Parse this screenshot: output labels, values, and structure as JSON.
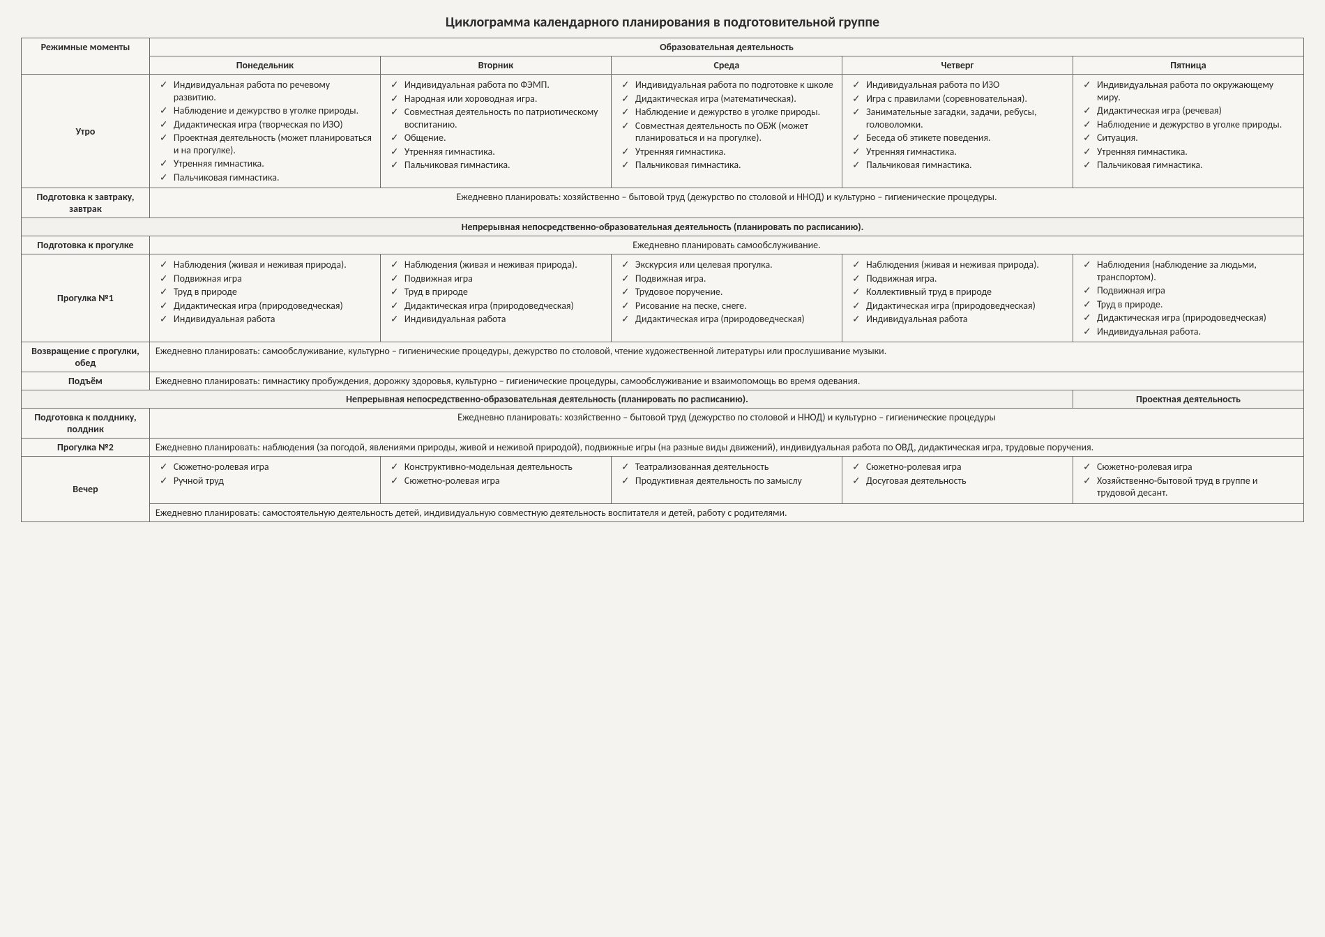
{
  "title": "Циклограмма календарного планирования в подготовительной группе",
  "header": {
    "col0": "Режимные моменты",
    "spanHeader": "Образовательная деятельность",
    "days": [
      "Понедельник",
      "Вторник",
      "Среда",
      "Четверг",
      "Пятница"
    ]
  },
  "rows": {
    "morning": {
      "label": "Утро",
      "cells": [
        [
          "Индивидуальная работа по речевому развитию.",
          "Наблюдение и дежурство в уголке природы.",
          "Дидактическая игра (творческая по ИЗО)",
          "Проектная деятельность (может планироваться и на прогулке).",
          "Утренняя гимнастика.",
          "Пальчиковая гимнастика."
        ],
        [
          "Индивидуальная работа по ФЭМП.",
          "Народная или хороводная игра.",
          "Совместная деятельность по патриотическому воспитанию.",
          "Общение.",
          "Утренняя гимнастика.",
          "Пальчиковая гимнастика."
        ],
        [
          "Индивидуальная работа по подготовке к школе",
          "Дидактическая игра (математическая).",
          "Наблюдение и дежурство в уголке природы.",
          "Совместная деятельность по ОБЖ (может планироваться и на прогулке).",
          "Утренняя гимнастика.",
          "Пальчиковая гимнастика."
        ],
        [
          "Индивидуальная работа по ИЗО",
          "Игра с правилами (соревновательная).",
          "Занимательные загадки, задачи, ребусы, головоломки.",
          "Беседа об этикете поведения.",
          "Утренняя гимнастика.",
          "Пальчиковая гимнастика."
        ],
        [
          "Индивидуальная работа по окружающему миру.",
          "Дидактическая игра (речевая)",
          "Наблюдение и дежурство в уголке природы.",
          "Ситуация.",
          "Утренняя гимнастика.",
          "Пальчиковая гимнастика."
        ]
      ]
    },
    "breakfastPrep": {
      "label": "Подготовка к завтраку, завтрак",
      "text": "Ежедневно планировать: хозяйственно – бытовой труд (дежурство по столовой и ННОД) и культурно – гигиенические процедуры."
    },
    "nnod1": "Непрерывная непосредственно-образовательная деятельность (планировать по расписанию).",
    "walkPrep": {
      "label": "Подготовка к прогулке",
      "text": "Ежедневно планировать самообслуживание."
    },
    "walk1": {
      "label": "Прогулка №1",
      "cells": [
        [
          "Наблюдения (живая и неживая природа).",
          "Подвижная игра",
          "Труд в природе",
          "Дидактическая игра (природоведческая)",
          "Индивидуальная работа"
        ],
        [
          "Наблюдения (живая и неживая природа).",
          "Подвижная игра",
          "Труд в природе",
          "Дидактическая игра (природоведческая)",
          "Индивидуальная работа"
        ],
        [
          "Экскурсия или целевая прогулка.",
          "Подвижная игра.",
          "Трудовое поручение.",
          "Рисование на песке, снеге.",
          "Дидактическая игра (природоведческая)"
        ],
        [
          "Наблюдения (живая и неживая природа).",
          "Подвижная игра.",
          "Коллективный труд в природе",
          "Дидактическая игра (природоведческая)",
          "Индивидуальная работа"
        ],
        [
          "Наблюдения (наблюдение за людьми, транспортом).",
          "Подвижная игра",
          "Труд в природе.",
          "Дидактическая игра (природоведческая)",
          "Индивидуальная работа."
        ]
      ]
    },
    "returnLunch": {
      "label": "Возвращение с прогулки, обед",
      "text": "Ежедневно планировать: самообслуживание, культурно – гигиенические процедуры, дежурство по столовой, чтение художественной литературы или прослушивание музыки."
    },
    "rise": {
      "label": "Подъём",
      "text": "Ежедневно планировать: гимнастику пробуждения, дорожку здоровья, культурно – гигиенические процедуры, самообслуживание и взаимопомощь во время одевания."
    },
    "nnod2": {
      "left": "Непрерывная непосредственно-образовательная деятельность (планировать по расписанию).",
      "right": "Проектная деятельность"
    },
    "snackPrep": {
      "label": "Подготовка к полднику, полдник",
      "text": "Ежедневно планировать: хозяйственно – бытовой труд (дежурство по столовой и ННОД) и культурно – гигиенические процедуры"
    },
    "walk2": {
      "label": "Прогулка №2",
      "text": "Ежедневно планировать: наблюдения (за погодой, явлениями природы, живой и неживой природой), подвижные игры (на разные виды движений), индивидуальная работа по ОВД, дидактическая игра, трудовые поручения."
    },
    "evening": {
      "label": "Вечер",
      "cells": [
        [
          "Сюжетно-ролевая игра",
          "Ручной труд"
        ],
        [
          "Конструктивно-модельная деятельность",
          "Сюжетно-ролевая игра"
        ],
        [
          "Театрализованная деятельность",
          "Продуктивная деятельность по замыслу"
        ],
        [
          "Сюжетно-ролевая игра",
          "Досуговая деятельность"
        ],
        [
          "Сюжетно-ролевая игра",
          "Хозяйственно-бытовой труд в группе и трудовой десант."
        ]
      ],
      "footer": "Ежедневно планировать: самостоятельную деятельность детей, индивидуальную совместную деятельность воспитателя и детей, работу с родителями."
    }
  }
}
